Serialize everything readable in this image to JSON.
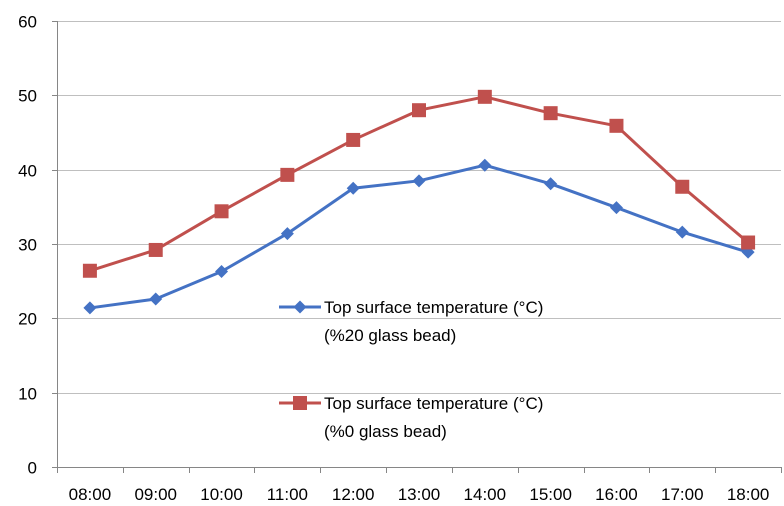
{
  "chart_data": {
    "type": "line",
    "title": "",
    "xlabel": "",
    "ylabel": "",
    "categories": [
      "08:00",
      "09:00",
      "10:00",
      "11:00",
      "12:00",
      "13:00",
      "14:00",
      "15:00",
      "16:00",
      "17:00",
      "18:00"
    ],
    "ylim": [
      0,
      60
    ],
    "yticks": [
      0,
      10,
      20,
      30,
      40,
      50,
      60
    ],
    "grid": true,
    "legend_position": "center",
    "series": [
      {
        "name": "Top surface temperature (°C)",
        "name_line2": "(%20 glass bead)",
        "color": "#4472C4",
        "marker": "diamond",
        "values": [
          21.4,
          22.6,
          26.3,
          31.4,
          37.5,
          38.5,
          40.6,
          38.1,
          34.9,
          31.6,
          28.9
        ]
      },
      {
        "name": "Top surface temperature (°C)",
        "name_line2": "(%0 glass bead)",
        "color": "#C0504D",
        "marker": "square",
        "values": [
          26.4,
          29.2,
          34.4,
          39.3,
          44.0,
          48.0,
          49.8,
          47.6,
          45.9,
          37.7,
          30.2
        ]
      }
    ]
  }
}
